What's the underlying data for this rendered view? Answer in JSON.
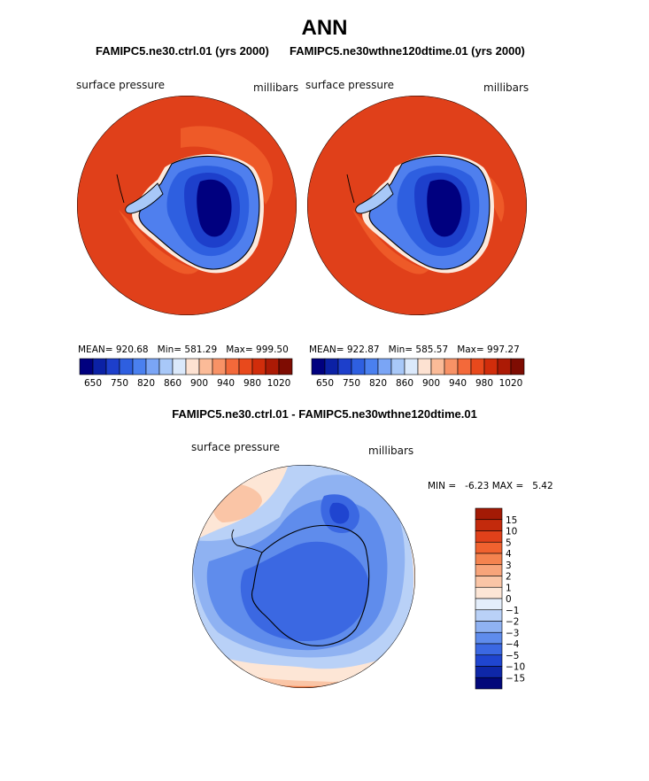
{
  "page": {
    "main_title": "ANN",
    "subtitle_ctrl": "FAMIPC5.ne30.ctrl.01 (yrs 2000)",
    "subtitle_test": "FAMIPC5.ne30wthne120dtime.01 (yrs 2000)",
    "diff_title": "FAMIPC5.ne30.ctrl.01 - FAMIPC5.ne30wthne120dtime.01"
  },
  "chart_data": [
    {
      "type": "heatmap",
      "projection": "polar-stereographic (south pole)",
      "name": "ctrl",
      "variable": "surface pressure",
      "units": "millibars",
      "stats": {
        "mean_label": "MEAN=",
        "mean": "920.68",
        "min_label": "Min=",
        "min": "581.29",
        "max_label": "Max=",
        "max": "999.50"
      },
      "colorbar": {
        "orientation": "horizontal",
        "levels": [
          600,
          650,
          700,
          750,
          800,
          820,
          840,
          860,
          880,
          900,
          920,
          940,
          960,
          980,
          1000,
          1020
        ],
        "tick_labels": [
          "650",
          "750",
          "820",
          "860",
          "900",
          "940",
          "980",
          "1020"
        ],
        "colors": [
          "#00007f",
          "#0b21a5",
          "#1d3fcb",
          "#2e5fe0",
          "#4a80ef",
          "#7aa5f5",
          "#a8c8f8",
          "#dbe9fb",
          "#fde2d2",
          "#fbbb98",
          "#f89266",
          "#f3693a",
          "#e8491c",
          "#d12d0b",
          "#ac1a05",
          "#7e0c02"
        ]
      }
    },
    {
      "type": "heatmap",
      "projection": "polar-stereographic (south pole)",
      "name": "test",
      "variable": "surface pressure",
      "units": "millibars",
      "stats": {
        "mean_label": "MEAN=",
        "mean": "922.87",
        "min_label": "Min=",
        "min": "585.57",
        "max_label": "Max=",
        "max": "997.27"
      },
      "colorbar": {
        "orientation": "horizontal",
        "levels": [
          600,
          650,
          700,
          750,
          800,
          820,
          840,
          860,
          880,
          900,
          920,
          940,
          960,
          980,
          1000,
          1020
        ],
        "tick_labels": [
          "650",
          "750",
          "820",
          "860",
          "900",
          "940",
          "980",
          "1020"
        ],
        "colors": [
          "#00007f",
          "#0b21a5",
          "#1d3fcb",
          "#2e5fe0",
          "#4a80ef",
          "#7aa5f5",
          "#a8c8f8",
          "#dbe9fb",
          "#fde2d2",
          "#fbbb98",
          "#f89266",
          "#f3693a",
          "#e8491c",
          "#d12d0b",
          "#ac1a05",
          "#7e0c02"
        ]
      }
    },
    {
      "type": "heatmap",
      "projection": "polar-stereographic (south pole)",
      "name": "difference",
      "variable": "surface pressure",
      "units": "millibars",
      "stats": {
        "min_label": "MIN =",
        "min": "-6.23",
        "max_label": "MAX =",
        "max": "5.42"
      },
      "colorbar": {
        "orientation": "vertical",
        "tick_labels": [
          "15",
          "10",
          "5",
          "4",
          "3",
          "2",
          "1",
          "0",
          "−1",
          "−2",
          "−3",
          "−4",
          "−5",
          "−10",
          "−15"
        ],
        "colors": [
          "#a31a05",
          "#c32a0c",
          "#e0411a",
          "#f0622f",
          "#f4834f",
          "#f7a47a",
          "#fac5a6",
          "#fde6d6",
          "#e4eefb",
          "#b9d1f7",
          "#8fb2f2",
          "#5f8cec",
          "#3b68e2",
          "#1f45d0",
          "#0e27a8",
          "#02087a"
        ]
      }
    }
  ]
}
